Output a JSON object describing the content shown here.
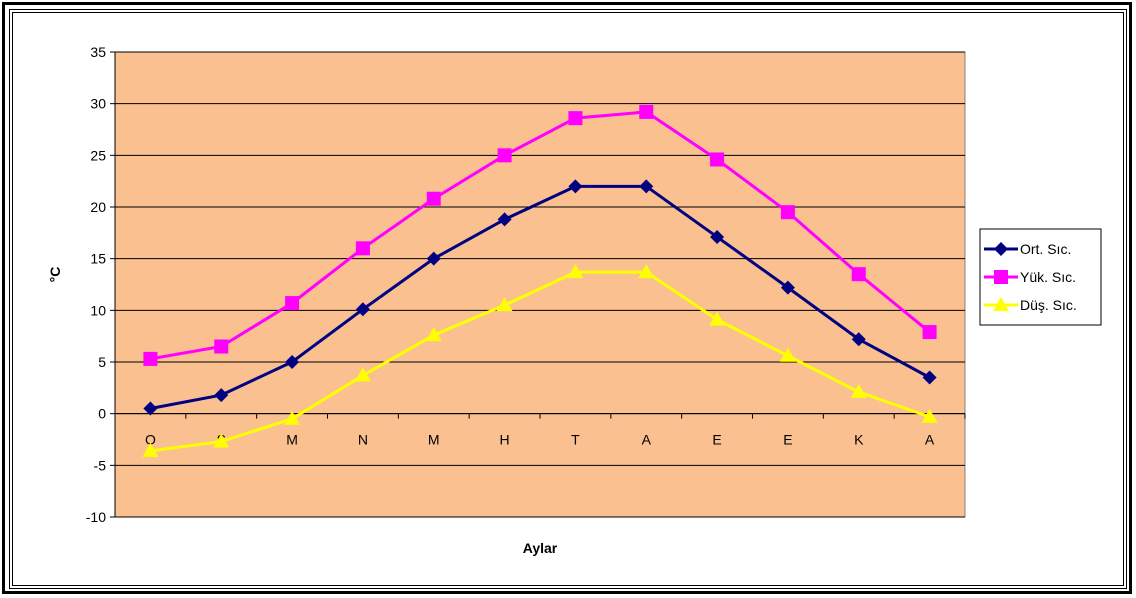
{
  "chart_data": {
    "type": "line",
    "title": "",
    "xlabel": "Aylar",
    "ylabel": "°C",
    "ylim": [
      -10,
      35
    ],
    "ytick_step": 5,
    "grid": "horizontal",
    "legend_position": "right",
    "plot_background": "#FAC090",
    "categories": [
      "O",
      "Ş",
      "M",
      "N",
      "M",
      "H",
      "T",
      "A",
      "E",
      "E",
      "K",
      "A"
    ],
    "series": [
      {
        "name": "Ort. Sıc.",
        "color": "#000080",
        "marker": "diamond",
        "values": [
          0.5,
          1.8,
          5.0,
          10.1,
          15.0,
          18.8,
          22.0,
          22.0,
          17.1,
          12.2,
          7.2,
          3.5
        ]
      },
      {
        "name": "Yük. Sıc.",
        "color": "#FF00FF",
        "marker": "square",
        "values": [
          5.3,
          6.5,
          10.7,
          16.0,
          20.8,
          25.0,
          28.6,
          29.2,
          24.6,
          19.5,
          13.5,
          7.9
        ]
      },
      {
        "name": "Düş. Sıc.",
        "color": "#FFFF00",
        "marker": "triangle",
        "values": [
          -3.6,
          -2.7,
          -0.5,
          3.7,
          7.6,
          10.5,
          13.7,
          13.7,
          9.1,
          5.6,
          2.1,
          -0.3
        ]
      }
    ]
  }
}
